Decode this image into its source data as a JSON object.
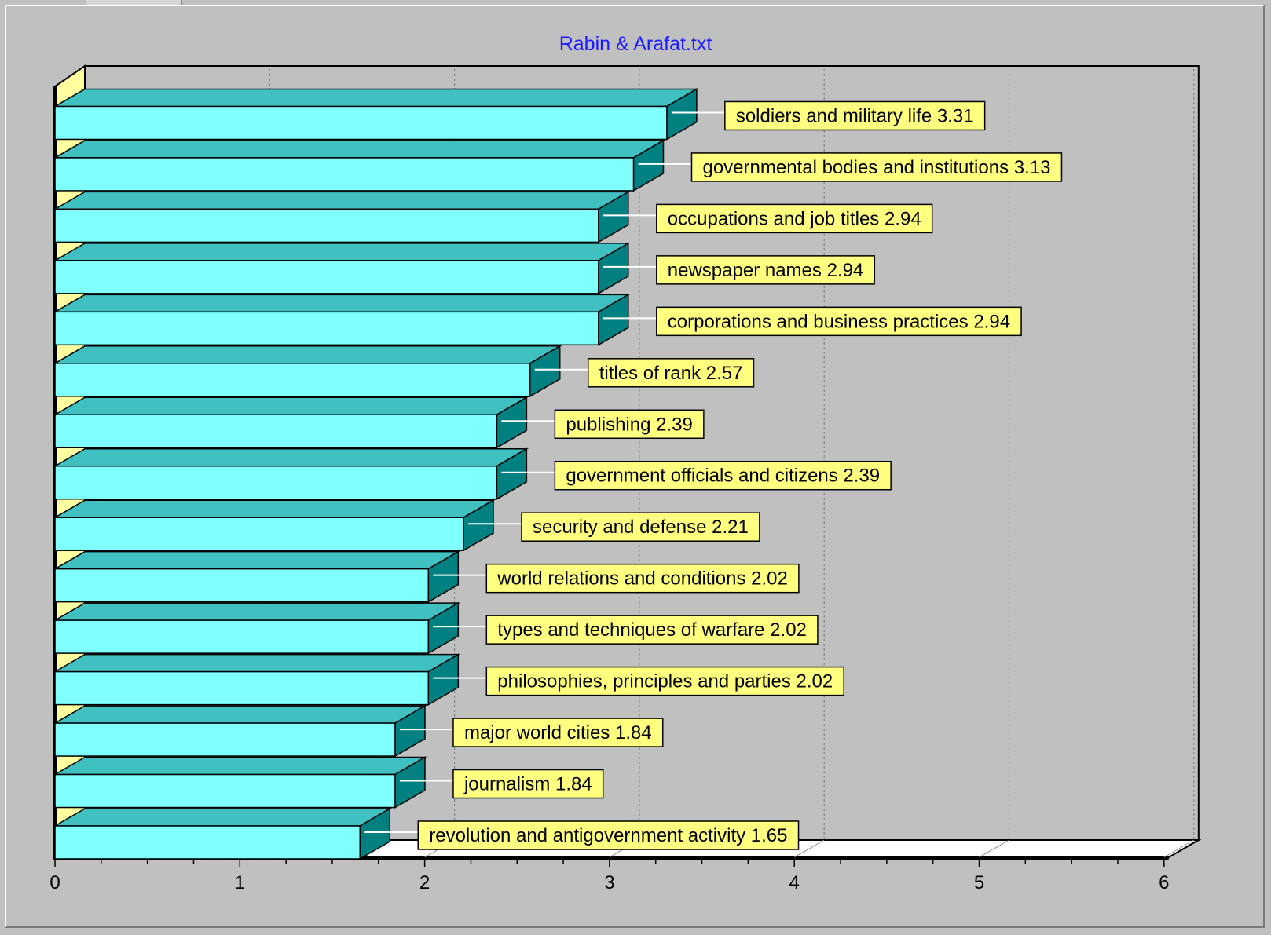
{
  "chart_data": {
    "type": "bar",
    "orientation": "horizontal",
    "style": "3d",
    "title": "Rabin & Arafat.txt",
    "xlabel": "",
    "ylabel": "",
    "xlim": [
      0,
      6
    ],
    "x_ticks": [
      "0",
      "1",
      "2",
      "3",
      "4",
      "5",
      "6"
    ],
    "grid": true,
    "categories": [
      "soldiers and military life",
      "governmental bodies and institutions",
      "occupations and job titles",
      "newspaper names",
      "corporations and business practices",
      "titles of rank",
      "publishing",
      "government officials and citizens",
      "security and defense",
      "world relations and conditions",
      "types and techniques of warfare",
      "philosophies, principles and parties",
      "major world cities",
      "journalism",
      "revolution and antigovernment activity"
    ],
    "values": [
      3.31,
      3.13,
      2.94,
      2.94,
      2.94,
      2.57,
      2.39,
      2.39,
      2.21,
      2.02,
      2.02,
      2.02,
      1.84,
      1.84,
      1.65
    ],
    "data_labels": [
      "soldiers and military life 3.31",
      "governmental bodies and institutions 3.13",
      "occupations and job titles 2.94",
      "newspaper names 2.94",
      "corporations and business practices 2.94",
      "titles of rank 2.57",
      "publishing 2.39",
      "government officials and citizens 2.39",
      "security and defense 2.21",
      "world relations and conditions 2.02",
      "types and techniques of warfare 2.02",
      "philosophies, principles and parties 2.02",
      "major world cities 1.84",
      "journalism 1.84",
      "revolution and antigovernment activity 1.65"
    ]
  },
  "colors": {
    "bar_front": "#80ffff",
    "bar_top": "#40c0c0",
    "bar_side": "#008080",
    "label_bg": "#ffff80",
    "floor": "#ffffff",
    "wall": "#c0c0c0",
    "title": "#1a1aff",
    "leader_line": "#ffffff"
  }
}
